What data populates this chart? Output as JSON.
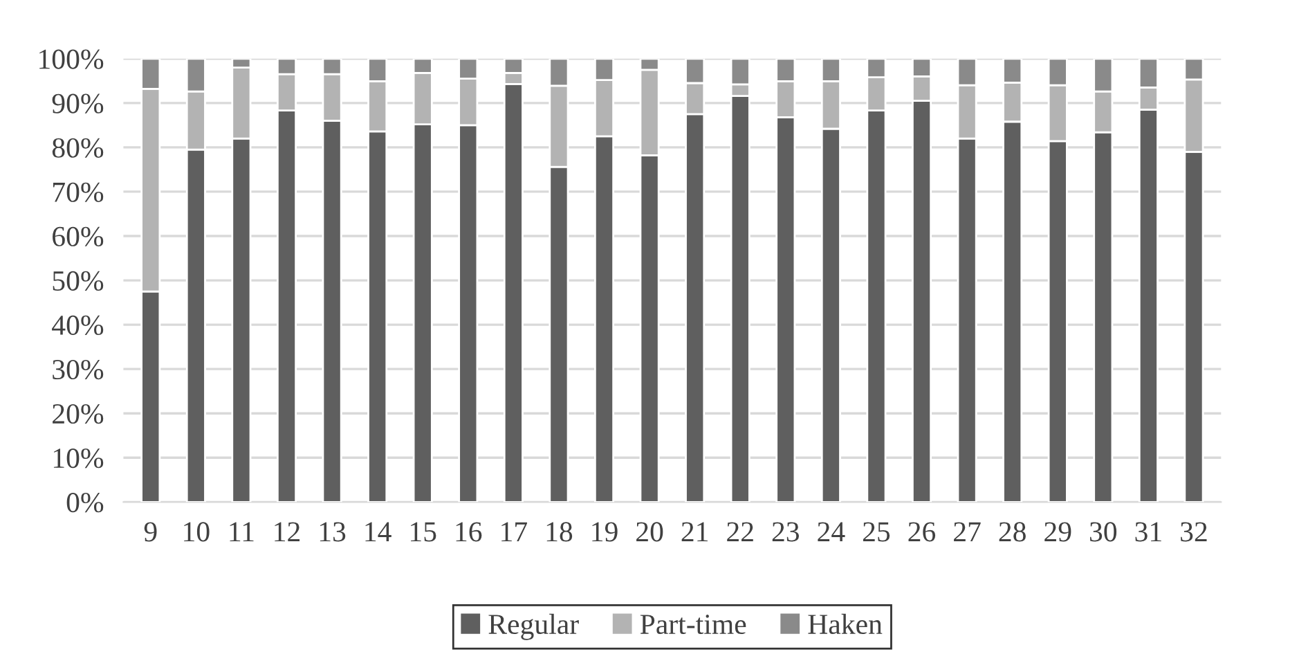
{
  "chart_data": {
    "type": "bar",
    "stacked": true,
    "categories": [
      "9",
      "10",
      "11",
      "12",
      "13",
      "14",
      "15",
      "16",
      "17",
      "18",
      "19",
      "20",
      "21",
      "22",
      "23",
      "24",
      "25",
      "26",
      "27",
      "28",
      "29",
      "30",
      "31",
      "32"
    ],
    "series": [
      {
        "name": "Regular",
        "color": "#5f5f5f",
        "values": [
          47.5,
          79.5,
          82,
          88.3,
          86,
          83.6,
          85.2,
          85,
          94.3,
          75.6,
          82.5,
          78.2,
          87.5,
          91.6,
          86.8,
          84.2,
          88.3,
          90.5,
          82,
          85.8,
          81.4,
          83.4,
          88.5,
          79
        ]
      },
      {
        "name": "Part-time",
        "color": "#b3b3b3",
        "values": [
          45.7,
          13.1,
          16,
          8.2,
          10.5,
          11.3,
          11.6,
          10.5,
          2.5,
          18.3,
          12.7,
          19.3,
          7,
          2.6,
          8.1,
          10.7,
          7.5,
          5.5,
          12,
          8.8,
          12.6,
          9.2,
          5,
          16.3
        ]
      },
      {
        "name": "Haken",
        "color": "#8a8a8a",
        "values": [
          6.8,
          7.4,
          2,
          3.5,
          3.5,
          5.1,
          3.2,
          4.5,
          3.2,
          6.1,
          4.8,
          2.5,
          5.5,
          5.8,
          5.1,
          5.1,
          4.2,
          4,
          6,
          5.4,
          6,
          7.4,
          6.5,
          4.7
        ]
      }
    ],
    "ylim": [
      0,
      100
    ],
    "yticks": [
      {
        "value": 0,
        "label": "0%"
      },
      {
        "value": 10,
        "label": "10%"
      },
      {
        "value": 20,
        "label": "20%"
      },
      {
        "value": 30,
        "label": "30%"
      },
      {
        "value": 40,
        "label": "40%"
      },
      {
        "value": 50,
        "label": "50%"
      },
      {
        "value": 60,
        "label": "60%"
      },
      {
        "value": 70,
        "label": "70%"
      },
      {
        "value": 80,
        "label": "80%"
      },
      {
        "value": 90,
        "label": "90%"
      },
      {
        "value": 100,
        "label": "100%"
      }
    ],
    "grid": "y",
    "legend": "bottom"
  }
}
